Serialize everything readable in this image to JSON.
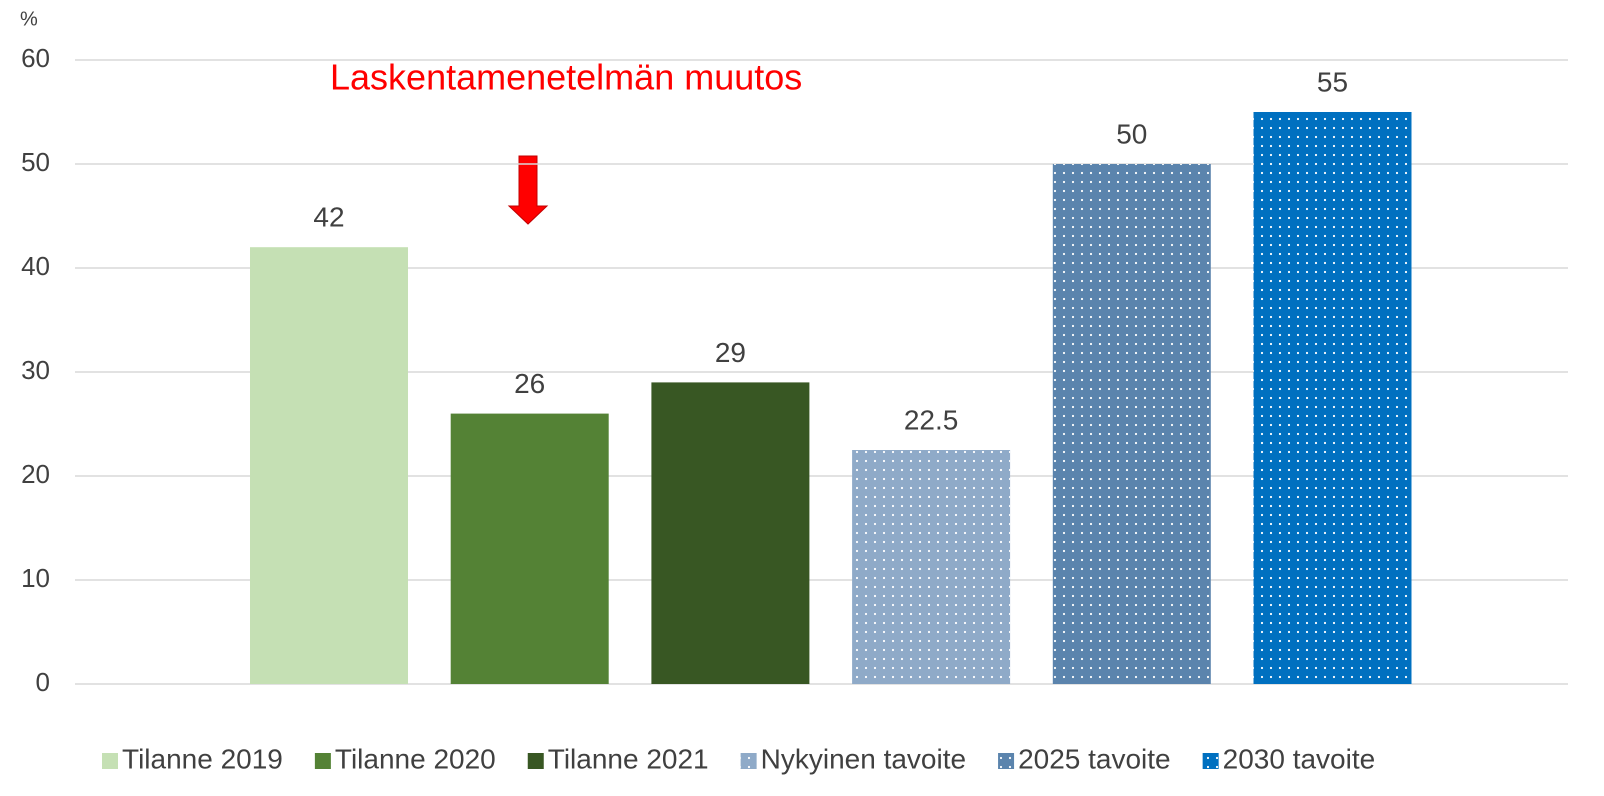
{
  "chart_data": {
    "type": "bar",
    "y_unit": "%",
    "annotation": "Laskentamenetelmän muutos",
    "annotation_color": "#ff0000",
    "series": [
      {
        "name": "Tilanne 2019",
        "color": "#c5e0b4",
        "values": [
          42
        ]
      },
      {
        "name": "Tilanne 2020",
        "color": "#548235",
        "values": [
          26
        ]
      },
      {
        "name": "Tilanne 2021",
        "color": "#385723",
        "values": [
          29
        ]
      },
      {
        "name": "Nykyinen tavoite",
        "color": "#8faac8",
        "pattern": "dots",
        "values": [
          22.5
        ]
      },
      {
        "name": "2025 tavoite",
        "color": "#5b84ad",
        "pattern": "dots",
        "values": [
          50
        ]
      },
      {
        "name": "2030 tavoite",
        "color": "#0070c0",
        "pattern": "dots",
        "values": [
          55
        ]
      }
    ],
    "ylim": [
      0,
      60
    ],
    "yticks": [
      0,
      10,
      20,
      30,
      40,
      50,
      60
    ],
    "grid": true,
    "legend": "bottom"
  }
}
